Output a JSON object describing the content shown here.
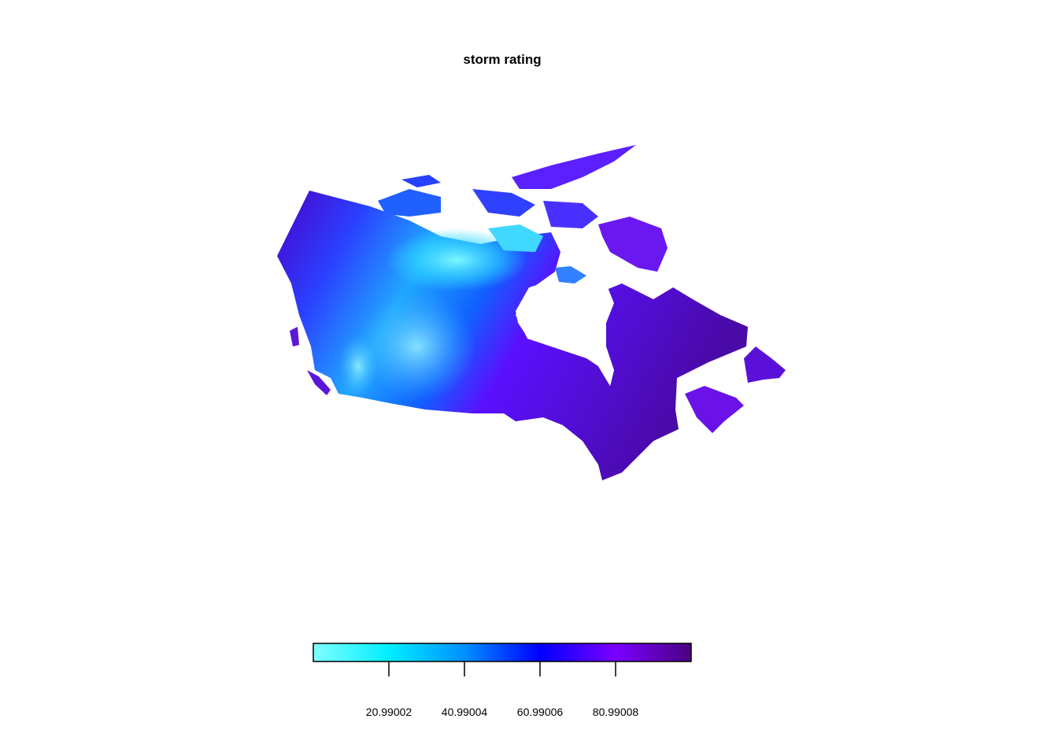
{
  "title": "storm rating",
  "map": {
    "region": "Canada",
    "color_scale": [
      "#80ffff",
      "#00eeff",
      "#0090ff",
      "#0000ff",
      "#7a00ff",
      "#4b0082"
    ]
  },
  "legend": {
    "ticks": [
      {
        "label": "20.99002",
        "value": 20.99002
      },
      {
        "label": "40.99004",
        "value": 40.99004
      },
      {
        "label": "60.99006",
        "value": 60.99006
      },
      {
        "label": "80.99008",
        "value": 80.99008
      }
    ],
    "range": [
      0.99,
      100.99
    ]
  }
}
